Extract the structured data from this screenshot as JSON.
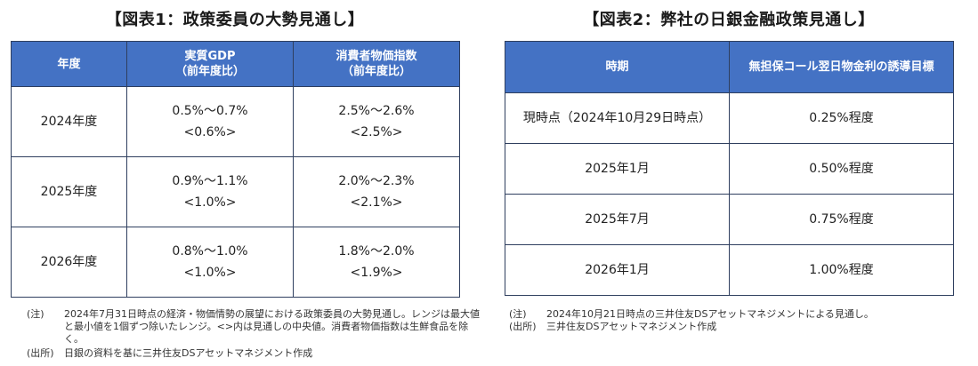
{
  "left": {
    "title": "【図表1：政策委員の大勢見通し】",
    "headers": [
      "年度",
      "実質GDP\n（前年度比）",
      "消費者物価指数\n（前年度比）"
    ],
    "rows": [
      {
        "year": "2024年度",
        "gdp": "0.5%～0.7%",
        "gdp_median": "<0.6%>",
        "cpi": "2.5%～2.6%",
        "cpi_median": "<2.5%>"
      },
      {
        "year": "2025年度",
        "gdp": "0.9%～1.1%",
        "gdp_median": "<1.0%>",
        "cpi": "2.0%～2.3%",
        "cpi_median": "<2.1%>"
      },
      {
        "year": "2026年度",
        "gdp": "0.8%～1.0%",
        "gdp_median": "<1.0%>",
        "cpi": "1.8%～2.0%",
        "cpi_median": "<1.9%>"
      }
    ],
    "notes": {
      "note_label": "(注)",
      "note_text": "2024年7月31日時点の経済・物価情勢の展望における政策委員の大勢見通し。レンジは最大値と最小値を1個ずつ除いたレンジ。<>内は見通しの中央値。消費者物価指数は生鮮食品を除く。",
      "source_label": "(出所)",
      "source_text": "日銀の資料を基に三井住友DSアセットマネジメント作成"
    }
  },
  "right": {
    "title": "【図表2：弊社の日銀金融政策見通し】",
    "headers": [
      "時期",
      "無担保コール翌日物金利の誘導目標"
    ],
    "rows": [
      {
        "period": "現時点（2024年10月29日時点）",
        "rate": "0.25%程度"
      },
      {
        "period": "2025年1月",
        "rate": "0.50%程度"
      },
      {
        "period": "2025年7月",
        "rate": "0.75%程度"
      },
      {
        "period": "2026年1月",
        "rate": "1.00%程度"
      }
    ],
    "notes": {
      "note_label": "(注)",
      "note_text": "2024年10月21日時点の三井住友DSアセットマネジメントによる見通し。",
      "source_label": "(出所)",
      "source_text": "三井住友DSアセットマネジメント作成"
    }
  }
}
